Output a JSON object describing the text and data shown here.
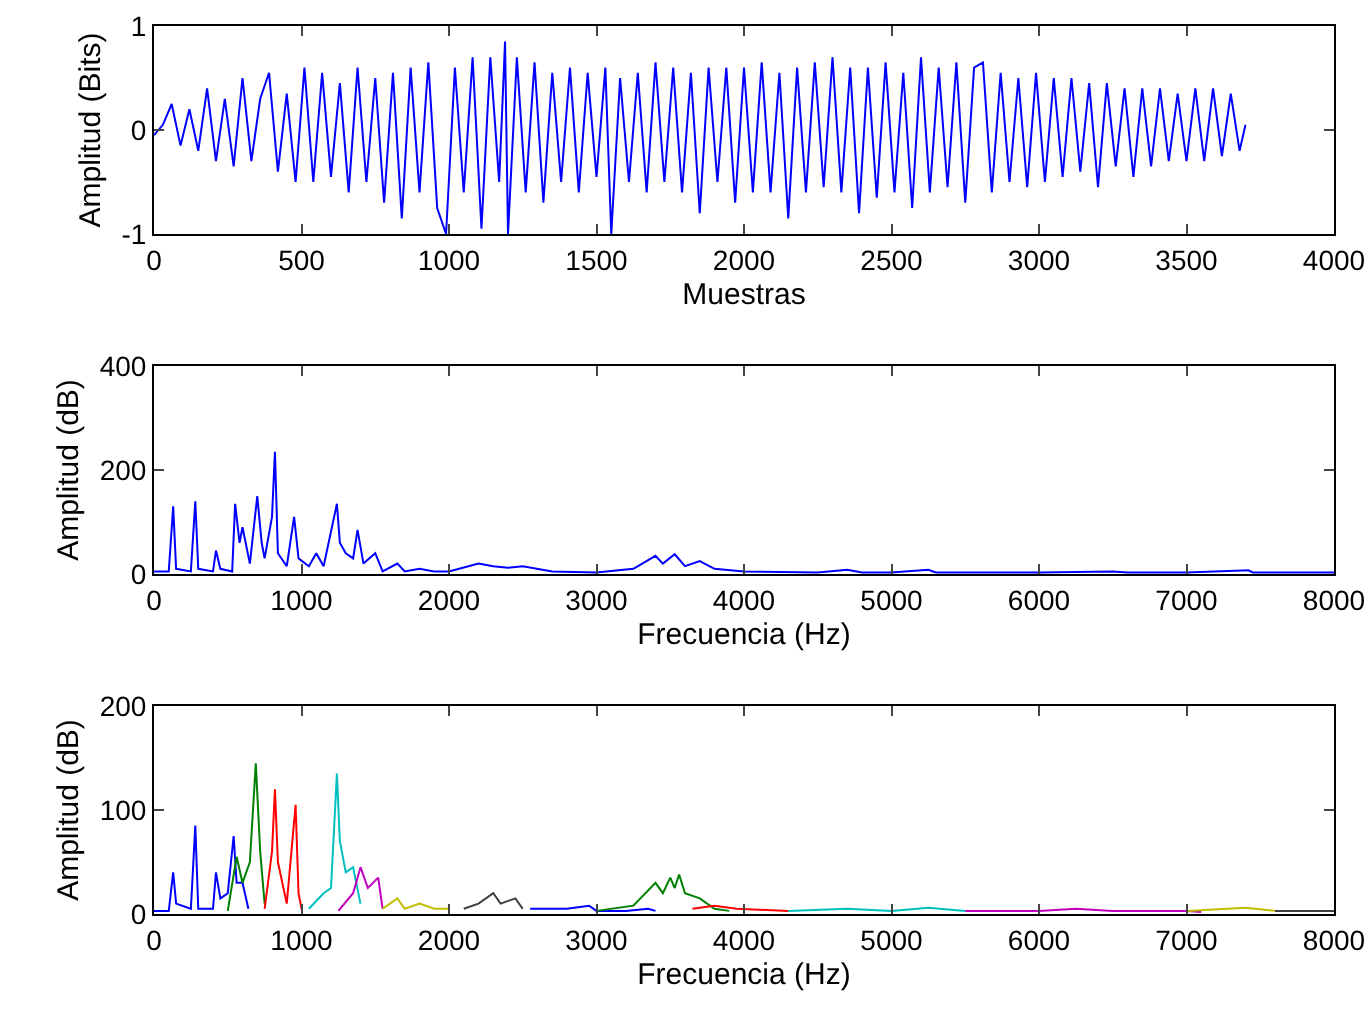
{
  "chart_data": [
    {
      "type": "line",
      "xlabel": "Muestras",
      "ylabel": "Amplitud (Bits)",
      "xlim": [
        0,
        4000
      ],
      "ylim": [
        -1,
        1
      ],
      "xticks": [
        0,
        500,
        1000,
        1500,
        2000,
        2500,
        3000,
        3500,
        4000
      ],
      "yticks": [
        -1,
        0,
        1
      ],
      "marker": "none",
      "line_style": "solid",
      "series": [
        {
          "color": "#0000ff",
          "x": [
            0,
            30,
            60,
            90,
            120,
            150,
            180,
            210,
            240,
            270,
            300,
            330,
            360,
            390,
            420,
            450,
            480,
            510,
            540,
            570,
            600,
            630,
            660,
            690,
            720,
            750,
            780,
            810,
            840,
            870,
            900,
            930,
            960,
            990,
            1020,
            1050,
            1080,
            1110,
            1140,
            1170,
            1190,
            1200,
            1230,
            1260,
            1290,
            1320,
            1350,
            1380,
            1410,
            1440,
            1470,
            1500,
            1530,
            1550,
            1580,
            1610,
            1640,
            1670,
            1700,
            1730,
            1760,
            1790,
            1820,
            1850,
            1880,
            1910,
            1940,
            1970,
            2000,
            2030,
            2060,
            2090,
            2120,
            2150,
            2180,
            2210,
            2240,
            2270,
            2300,
            2330,
            2360,
            2390,
            2420,
            2450,
            2480,
            2510,
            2540,
            2570,
            2600,
            2630,
            2660,
            2690,
            2720,
            2750,
            2780,
            2810,
            2840,
            2870,
            2900,
            2930,
            2960,
            2990,
            3020,
            3050,
            3080,
            3110,
            3140,
            3170,
            3200,
            3230,
            3260,
            3290,
            3320,
            3350,
            3380,
            3410,
            3440,
            3470,
            3500,
            3530,
            3560,
            3590,
            3620,
            3650,
            3680,
            3700
          ],
          "values": [
            -0.05,
            0.05,
            0.25,
            -0.15,
            0.2,
            -0.2,
            0.4,
            -0.3,
            0.3,
            -0.35,
            0.5,
            -0.3,
            0.3,
            0.55,
            -0.4,
            0.35,
            -0.5,
            0.6,
            -0.5,
            0.55,
            -0.45,
            0.45,
            -0.6,
            0.6,
            -0.5,
            0.5,
            -0.7,
            0.55,
            -0.85,
            0.6,
            -0.6,
            0.65,
            -0.75,
            -1,
            0.6,
            -0.6,
            0.7,
            -0.95,
            0.7,
            -0.5,
            0.85,
            -1,
            0.7,
            -0.6,
            0.65,
            -0.7,
            0.55,
            -0.5,
            0.6,
            -0.6,
            0.55,
            -0.45,
            0.6,
            -1,
            0.5,
            -0.5,
            0.55,
            -0.6,
            0.65,
            -0.5,
            0.6,
            -0.6,
            0.55,
            -0.8,
            0.6,
            -0.5,
            0.6,
            -0.7,
            0.6,
            -0.6,
            0.65,
            -0.6,
            0.55,
            -0.85,
            0.6,
            -0.6,
            0.65,
            -0.55,
            0.7,
            -0.6,
            0.6,
            -0.8,
            0.6,
            -0.65,
            0.65,
            -0.6,
            0.55,
            -0.75,
            0.7,
            -0.6,
            0.6,
            -0.55,
            0.65,
            -0.7,
            0.6,
            0.65,
            -0.6,
            0.55,
            -0.5,
            0.5,
            -0.55,
            0.55,
            -0.5,
            0.5,
            -0.45,
            0.5,
            -0.4,
            0.45,
            -0.55,
            0.45,
            -0.35,
            0.4,
            -0.45,
            0.4,
            -0.35,
            0.4,
            -0.3,
            0.35,
            -0.3,
            0.4,
            -0.3,
            0.4,
            -0.25,
            0.35,
            -0.2,
            0.05
          ]
        }
      ]
    },
    {
      "type": "line",
      "xlabel": "Frecuencia (Hz)",
      "ylabel": "Amplitud (dB)",
      "xlim": [
        0,
        8000
      ],
      "ylim": [
        0,
        400
      ],
      "xticks": [
        0,
        1000,
        2000,
        3000,
        4000,
        5000,
        6000,
        7000,
        8000
      ],
      "yticks": [
        0,
        200,
        400
      ],
      "marker": "none",
      "line_style": "solid",
      "series": [
        {
          "color": "#0000ff",
          "x": [
            0,
            100,
            130,
            150,
            250,
            280,
            300,
            400,
            420,
            450,
            530,
            550,
            580,
            600,
            650,
            700,
            730,
            750,
            800,
            820,
            840,
            900,
            950,
            980,
            1050,
            1100,
            1150,
            1240,
            1260,
            1300,
            1350,
            1380,
            1420,
            1500,
            1550,
            1650,
            1700,
            1800,
            1900,
            2000,
            2200,
            2300,
            2400,
            2500,
            2700,
            3000,
            3250,
            3400,
            3450,
            3530,
            3600,
            3700,
            3800,
            4000,
            4500,
            4700,
            4800,
            5000,
            5250,
            5300,
            6000,
            6500,
            6600,
            7000,
            7420,
            7450,
            8000
          ],
          "values": [
            5,
            5,
            130,
            10,
            5,
            140,
            10,
            5,
            45,
            10,
            5,
            135,
            60,
            90,
            20,
            150,
            60,
            30,
            110,
            235,
            40,
            15,
            110,
            30,
            15,
            40,
            15,
            135,
            60,
            40,
            30,
            85,
            20,
            40,
            5,
            20,
            5,
            10,
            5,
            5,
            20,
            15,
            12,
            15,
            5,
            3,
            10,
            35,
            20,
            38,
            15,
            25,
            10,
            5,
            3,
            8,
            3,
            3,
            8,
            3,
            3,
            5,
            3,
            3,
            7,
            3,
            3
          ]
        }
      ]
    },
    {
      "type": "line",
      "xlabel": "Frecuencia (Hz)",
      "ylabel": "Amplitud (dB)",
      "xlim": [
        0,
        8000
      ],
      "ylim": [
        0,
        200
      ],
      "xticks": [
        0,
        1000,
        2000,
        3000,
        4000,
        5000,
        6000,
        7000,
        8000
      ],
      "yticks": [
        0,
        100,
        200
      ],
      "marker": "none",
      "line_style": "solid",
      "series": [
        {
          "color": "#0000ff",
          "x": [
            0,
            100,
            130,
            150,
            250,
            280,
            300,
            400,
            420,
            450,
            500,
            540,
            560,
            600,
            640,
            2000,
            2550,
            2800,
            2950,
            3000,
            3200,
            3350,
            3400
          ],
          "values": [
            3,
            3,
            40,
            10,
            5,
            85,
            5,
            5,
            40,
            15,
            20,
            75,
            30,
            30,
            5,
            null,
            5,
            5,
            8,
            3,
            3,
            5,
            3
          ]
        },
        {
          "color": "#008000",
          "x": [
            500,
            560,
            600,
            650,
            690,
            720,
            750,
            2000,
            3000,
            3250,
            3400,
            3450,
            3500,
            3530,
            3560,
            3600,
            3700,
            3800,
            3900
          ],
          "values": [
            3,
            55,
            30,
            50,
            145,
            60,
            10,
            null,
            3,
            8,
            30,
            20,
            35,
            25,
            38,
            20,
            15,
            5,
            3
          ]
        },
        {
          "color": "#ff0000",
          "x": [
            750,
            800,
            820,
            840,
            900,
            960,
            980,
            1000,
            2000,
            3650,
            3800,
            3950,
            4300
          ],
          "values": [
            5,
            60,
            120,
            50,
            10,
            105,
            20,
            5,
            null,
            5,
            8,
            5,
            3
          ]
        },
        {
          "color": "#00bfbf",
          "x": [
            1050,
            1150,
            1200,
            1240,
            1260,
            1300,
            1350,
            1400,
            2000,
            4300,
            4700,
            5000,
            5250,
            5500
          ],
          "values": [
            5,
            20,
            25,
            135,
            70,
            40,
            45,
            10,
            null,
            3,
            5,
            3,
            6,
            3
          ]
        },
        {
          "color": "#bf00bf",
          "x": [
            1250,
            1350,
            1400,
            1450,
            1520,
            1550,
            2000,
            5500,
            6000,
            6250,
            6500,
            7000,
            7100
          ],
          "values": [
            3,
            20,
            45,
            25,
            35,
            5,
            null,
            3,
            3,
            5,
            3,
            3,
            2
          ]
        },
        {
          "color": "#bfbf00",
          "x": [
            1550,
            1650,
            1700,
            1800,
            1900,
            2000,
            3000,
            7000,
            7400,
            7600
          ],
          "values": [
            5,
            15,
            5,
            10,
            5,
            5,
            null,
            3,
            6,
            3
          ]
        },
        {
          "color": "#404040",
          "x": [
            2100,
            2200,
            2300,
            2350,
            2450,
            2500,
            3000,
            7600,
            8000
          ],
          "values": [
            5,
            10,
            20,
            10,
            15,
            5,
            null,
            3,
            3
          ]
        }
      ]
    }
  ]
}
